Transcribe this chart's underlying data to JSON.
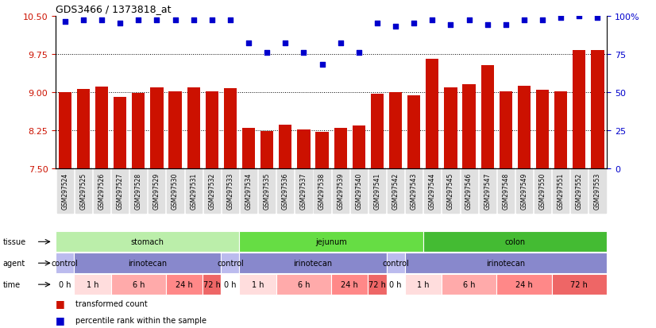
{
  "title": "GDS3466 / 1373818_at",
  "samples": [
    "GSM297524",
    "GSM297525",
    "GSM297526",
    "GSM297527",
    "GSM297528",
    "GSM297529",
    "GSM297530",
    "GSM297531",
    "GSM297532",
    "GSM297533",
    "GSM297534",
    "GSM297535",
    "GSM297536",
    "GSM297537",
    "GSM297538",
    "GSM297539",
    "GSM297540",
    "GSM297541",
    "GSM297542",
    "GSM297543",
    "GSM297544",
    "GSM297545",
    "GSM297546",
    "GSM297547",
    "GSM297548",
    "GSM297549",
    "GSM297550",
    "GSM297551",
    "GSM297552",
    "GSM297553"
  ],
  "bar_values": [
    9.0,
    9.06,
    9.11,
    8.91,
    8.98,
    9.09,
    9.01,
    9.09,
    9.02,
    9.07,
    8.3,
    8.24,
    8.36,
    8.27,
    8.22,
    8.3,
    8.34,
    8.97,
    9.0,
    8.93,
    9.65,
    9.1,
    9.16,
    9.53,
    9.01,
    9.12,
    9.05,
    9.01,
    9.82,
    9.82
  ],
  "percentile_values": [
    96,
    97,
    97,
    95,
    97,
    97,
    97,
    97,
    97,
    97,
    82,
    76,
    82,
    76,
    68,
    82,
    76,
    95,
    93,
    95,
    97,
    94,
    97,
    94,
    94,
    97,
    97,
    99,
    100,
    99
  ],
  "ylim_left": [
    7.5,
    10.5
  ],
  "yticks_left": [
    7.5,
    8.25,
    9.0,
    9.75,
    10.5
  ],
  "yticks_right": [
    0,
    25,
    50,
    75,
    100
  ],
  "bar_color": "#CC1100",
  "dot_color": "#0000CC",
  "background_color": "#FFFFFF",
  "tissue_groups": [
    {
      "label": "stomach",
      "start": 0,
      "end": 9,
      "color": "#BBEEAA"
    },
    {
      "label": "jejunum",
      "start": 10,
      "end": 19,
      "color": "#66DD44"
    },
    {
      "label": "colon",
      "start": 20,
      "end": 29,
      "color": "#44BB33"
    }
  ],
  "agent_groups": [
    {
      "label": "control",
      "start": 0,
      "end": 0,
      "color": "#BBBBEE"
    },
    {
      "label": "irinotecan",
      "start": 1,
      "end": 8,
      "color": "#8888CC"
    },
    {
      "label": "control",
      "start": 9,
      "end": 9,
      "color": "#BBBBEE"
    },
    {
      "label": "irinotecan",
      "start": 10,
      "end": 17,
      "color": "#8888CC"
    },
    {
      "label": "control",
      "start": 18,
      "end": 18,
      "color": "#BBBBEE"
    },
    {
      "label": "irinotecan",
      "start": 19,
      "end": 29,
      "color": "#8888CC"
    }
  ],
  "time_groups": [
    {
      "label": "0 h",
      "start": 0,
      "end": 0,
      "color": "#FFFFFF"
    },
    {
      "label": "1 h",
      "start": 1,
      "end": 2,
      "color": "#FFDDDD"
    },
    {
      "label": "6 h",
      "start": 3,
      "end": 5,
      "color": "#FFAAAA"
    },
    {
      "label": "24 h",
      "start": 6,
      "end": 7,
      "color": "#FF8888"
    },
    {
      "label": "72 h",
      "start": 8,
      "end": 8,
      "color": "#EE6666"
    },
    {
      "label": "0 h",
      "start": 9,
      "end": 9,
      "color": "#FFFFFF"
    },
    {
      "label": "1 h",
      "start": 10,
      "end": 11,
      "color": "#FFDDDD"
    },
    {
      "label": "6 h",
      "start": 12,
      "end": 14,
      "color": "#FFAAAA"
    },
    {
      "label": "24 h",
      "start": 15,
      "end": 16,
      "color": "#FF8888"
    },
    {
      "label": "72 h",
      "start": 17,
      "end": 17,
      "color": "#EE6666"
    },
    {
      "label": "0 h",
      "start": 18,
      "end": 18,
      "color": "#FFFFFF"
    },
    {
      "label": "1 h",
      "start": 19,
      "end": 20,
      "color": "#FFDDDD"
    },
    {
      "label": "6 h",
      "start": 21,
      "end": 23,
      "color": "#FFAAAA"
    },
    {
      "label": "24 h",
      "start": 24,
      "end": 26,
      "color": "#FF8888"
    },
    {
      "label": "72 h",
      "start": 27,
      "end": 29,
      "color": "#EE6666"
    }
  ],
  "legend_items": [
    {
      "label": "transformed count",
      "color": "#CC1100"
    },
    {
      "label": "percentile rank within the sample",
      "color": "#0000CC"
    }
  ],
  "row_labels": [
    "tissue",
    "agent",
    "time"
  ]
}
